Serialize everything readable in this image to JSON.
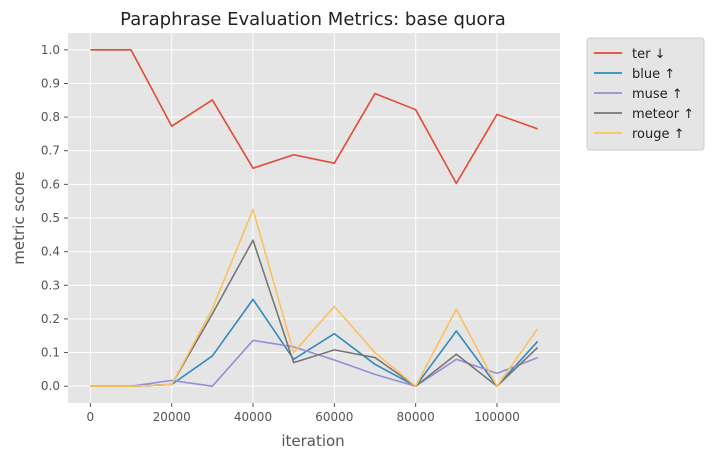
{
  "chart_data": {
    "type": "line",
    "title": "Paraphrase Evaluation Metrics: base quora",
    "xlabel": "iteration",
    "ylabel": "metric score",
    "x": [
      0,
      10000,
      20000,
      30000,
      40000,
      50000,
      60000,
      70000,
      80000,
      90000,
      100000,
      110000
    ],
    "xlim": [
      -5500,
      115500
    ],
    "ylim": [
      -0.05,
      1.05
    ],
    "xticks": [
      0,
      20000,
      40000,
      60000,
      80000,
      100000
    ],
    "xtick_labels": [
      "0",
      "20000",
      "40000",
      "60000",
      "80000",
      "100000"
    ],
    "yticks": [
      0.0,
      0.1,
      0.2,
      0.3,
      0.4,
      0.5,
      0.6,
      0.7,
      0.8,
      0.9,
      1.0
    ],
    "ytick_labels": [
      "0.0",
      "0.1",
      "0.2",
      "0.3",
      "0.4",
      "0.5",
      "0.6",
      "0.7",
      "0.8",
      "0.9",
      "1.0"
    ],
    "grid": true,
    "legend_position": "outside-top-right",
    "series": [
      {
        "name": "ter ↓",
        "color": "#E24A33",
        "values": [
          1.0,
          1.0,
          0.773,
          0.851,
          0.648,
          0.688,
          0.663,
          0.87,
          0.822,
          0.603,
          0.808,
          0.765
        ]
      },
      {
        "name": "blue ↑",
        "color": "#348ABD",
        "values": [
          0.0,
          0.0,
          0.005,
          0.09,
          0.258,
          0.08,
          0.156,
          0.065,
          0.0,
          0.164,
          0.0,
          0.133
        ]
      },
      {
        "name": "muse ↑",
        "color": "#988ED5",
        "values": [
          0.0,
          0.0,
          0.017,
          0.0,
          0.136,
          0.117,
          0.078,
          0.035,
          0.0,
          0.08,
          0.038,
          0.085
        ]
      },
      {
        "name": "meteor ↑",
        "color": "#777777",
        "values": [
          0.0,
          0.0,
          0.005,
          0.215,
          0.434,
          0.07,
          0.108,
          0.085,
          0.0,
          0.095,
          0.0,
          0.115
        ]
      },
      {
        "name": "rouge ↑",
        "color": "#FBC15E",
        "values": [
          0.0,
          0.0,
          0.005,
          0.23,
          0.525,
          0.1,
          0.237,
          0.1,
          0.0,
          0.229,
          0.0,
          0.171
        ]
      }
    ]
  }
}
